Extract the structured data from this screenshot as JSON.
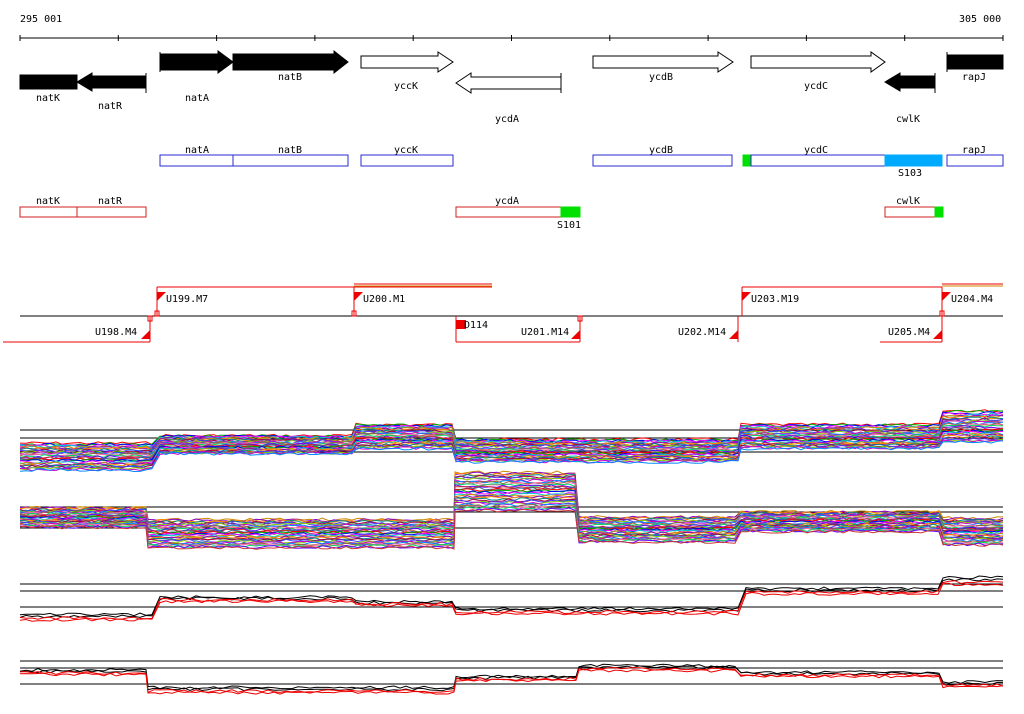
{
  "ruler": {
    "start_label": "295 001",
    "end_label": "305 000"
  },
  "colors": {
    "gene_fill": "#000000",
    "gene_outline": "#000000",
    "forward_box": "#2a2ad0",
    "reverse_box": "#d02020",
    "green_feature": "#00e000",
    "cyan_feature": "#00aaff",
    "promoter_flag": "#ee0000",
    "promoter_line": "#ee0000"
  },
  "genes": [
    {
      "name": "natK",
      "strand": "-",
      "filled": true
    },
    {
      "name": "natR",
      "strand": "-",
      "filled": true
    },
    {
      "name": "natA",
      "strand": "+",
      "filled": true
    },
    {
      "name": "natB",
      "strand": "+",
      "filled": true
    },
    {
      "name": "yccK",
      "strand": "+",
      "filled": false
    },
    {
      "name": "ycdA",
      "strand": "-",
      "filled": false
    },
    {
      "name": "ycdB",
      "strand": "+",
      "filled": false
    },
    {
      "name": "ycdC",
      "strand": "+",
      "filled": false
    },
    {
      "name": "cwlK",
      "strand": "-",
      "filled": true
    },
    {
      "name": "rapJ",
      "strand": "+",
      "filled": true
    }
  ],
  "forward_boxes": [
    {
      "name": "natA"
    },
    {
      "name": "natB"
    },
    {
      "name": "yccK"
    },
    {
      "name": "ycdB"
    },
    {
      "name": "ycdC"
    },
    {
      "name": "rapJ"
    }
  ],
  "reverse_boxes": [
    {
      "name": "natK"
    },
    {
      "name": "natR"
    },
    {
      "name": "ycdA"
    },
    {
      "name": "cwlK"
    }
  ],
  "features": [
    {
      "label": "S101",
      "color": "green"
    },
    {
      "label": "S103",
      "color": "cyan"
    }
  ],
  "promoters": [
    {
      "label": "U199.M7",
      "strand": "+"
    },
    {
      "label": "U200.M1",
      "strand": "+"
    },
    {
      "label": "U203.M19",
      "strand": "+"
    },
    {
      "label": "U204.M4",
      "strand": "+"
    },
    {
      "label": "U198.M4",
      "strand": "-"
    },
    {
      "label": "D114",
      "strand": "-"
    },
    {
      "label": "U201.M14",
      "strand": "-"
    },
    {
      "label": "U202.M14",
      "strand": "-"
    },
    {
      "label": "U205.M4",
      "strand": "-"
    }
  ]
}
